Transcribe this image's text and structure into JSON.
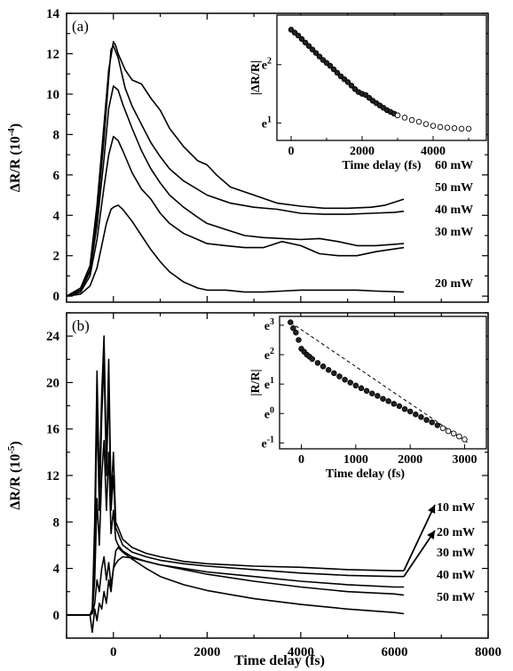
{
  "figure": {
    "x_label": "Time delay (fs)",
    "x_ticks": [
      "0",
      "2000",
      "4000",
      "6000",
      "8000"
    ]
  },
  "chart_data": [
    {
      "id": "panel-a-main",
      "type": "line",
      "panel_label": "(a)",
      "xlabel": "Time delay (fs)",
      "ylabel": "ΔR/R (10",
      "ylabel_exp": "-4",
      "ylabel_close": ")",
      "xlim": [
        -1000,
        8000
      ],
      "ylim": [
        -0.3,
        14
      ],
      "y_ticks": [
        "0",
        "2",
        "4",
        "6",
        "8",
        "10",
        "12",
        "14"
      ],
      "series": [
        {
          "name": "60 mW",
          "x": [
            -1000,
            -700,
            -500,
            -350,
            -200,
            -100,
            0,
            50,
            100,
            250,
            400,
            600,
            800,
            1000,
            1200,
            1500,
            1800,
            2000,
            2200,
            2500,
            3000,
            3500,
            4000,
            4500,
            5000,
            5500,
            5800,
            6200
          ],
          "y": [
            0,
            0.4,
            1.5,
            4.5,
            8.5,
            11.2,
            12.6,
            12.4,
            12.0,
            11.2,
            10.7,
            10.5,
            9.8,
            9.2,
            8.3,
            7.4,
            6.7,
            6.5,
            6.0,
            5.4,
            5.0,
            4.6,
            4.45,
            4.35,
            4.35,
            4.4,
            4.5,
            4.8
          ]
        },
        {
          "name": "50 mW",
          "x": [
            -1000,
            -700,
            -500,
            -350,
            -200,
            -100,
            -50,
            0,
            100,
            250,
            400,
            600,
            800,
            1000,
            1200,
            1500,
            2000,
            2500,
            3000,
            3500,
            4000,
            4500,
            5000,
            5500,
            6000,
            6200
          ],
          "y": [
            0,
            0.3,
            1.3,
            4.0,
            7.8,
            10.8,
            12.2,
            12.4,
            11.8,
            10.3,
            9.4,
            8.5,
            7.6,
            6.9,
            6.3,
            5.7,
            5.0,
            4.6,
            4.4,
            4.3,
            4.1,
            4.05,
            4.05,
            4.1,
            4.15,
            4.2
          ]
        },
        {
          "name": "40 mW",
          "x": [
            -1000,
            -700,
            -500,
            -350,
            -200,
            -100,
            0,
            100,
            200,
            400,
            600,
            800,
            1000,
            1200,
            1500,
            1800,
            2000,
            2400,
            2800,
            3200,
            3600,
            4000,
            4400,
            4800,
            5200,
            5600,
            6200
          ],
          "y": [
            0,
            0.3,
            1.2,
            3.5,
            6.8,
            9.3,
            10.4,
            10.2,
            9.5,
            8.3,
            7.2,
            6.3,
            5.6,
            5.0,
            4.4,
            3.9,
            3.6,
            3.3,
            3.0,
            2.9,
            2.85,
            2.8,
            2.85,
            2.7,
            2.5,
            2.5,
            2.6
          ]
        },
        {
          "name": "30 mW",
          "x": [
            -1000,
            -700,
            -500,
            -350,
            -200,
            -100,
            0,
            100,
            200,
            400,
            600,
            800,
            1000,
            1200,
            1500,
            1800,
            2000,
            2400,
            2800,
            3200,
            3600,
            4000,
            4400,
            4800,
            5200,
            5600,
            6200
          ],
          "y": [
            0,
            0.2,
            1.0,
            2.8,
            5.4,
            7.0,
            7.9,
            7.7,
            7.2,
            6.1,
            5.3,
            4.8,
            4.1,
            3.6,
            3.1,
            2.8,
            2.6,
            2.5,
            2.4,
            2.4,
            2.7,
            2.5,
            2.1,
            2.0,
            2.0,
            2.2,
            2.4
          ]
        },
        {
          "name": "20 mW",
          "x": [
            -1000,
            -700,
            -500,
            -350,
            -250,
            -150,
            -50,
            0,
            100,
            200,
            400,
            600,
            800,
            1000,
            1200,
            1500,
            1800,
            2000,
            2400,
            2800,
            3200,
            3600,
            4000,
            4400,
            4800,
            5200,
            5600,
            6200
          ],
          "y": [
            0,
            0.1,
            0.5,
            1.4,
            2.5,
            3.6,
            4.3,
            4.4,
            4.5,
            4.3,
            3.7,
            3.0,
            2.3,
            1.7,
            1.2,
            0.7,
            0.4,
            0.3,
            0.3,
            0.2,
            0.2,
            0.25,
            0.3,
            0.3,
            0.3,
            0.3,
            0.25,
            0.2
          ]
        }
      ],
      "annotations": [
        "60 mW",
        "50 mW",
        "40 mW",
        "30 mW",
        "20 mW"
      ]
    },
    {
      "id": "panel-a-inset",
      "type": "scatter",
      "xlabel": "Time delay (fs)",
      "ylabel": "|ΔR/R|",
      "xlim": [
        -400,
        5500
      ],
      "x_ticks": [
        "0",
        "2000",
        "4000"
      ],
      "y_scale": "log",
      "y_ticks": [
        "e2",
        "e1"
      ],
      "points_x": [
        0,
        100,
        200,
        300,
        400,
        500,
        600,
        700,
        800,
        900,
        1000,
        1100,
        1200,
        1300,
        1400,
        1500,
        1600,
        1700,
        1800,
        1900,
        2000,
        2100,
        2200,
        2300,
        2400,
        2500,
        2600,
        2700,
        2800,
        2900,
        3000,
        3200,
        3400,
        3600,
        3800,
        4000,
        4200,
        4400,
        4600,
        4800,
        5000
      ],
      "points_lnY": [
        2.6,
        2.55,
        2.5,
        2.44,
        2.38,
        2.32,
        2.26,
        2.2,
        2.14,
        2.08,
        2.03,
        1.98,
        1.92,
        1.86,
        1.8,
        1.75,
        1.7,
        1.64,
        1.58,
        1.53,
        1.5,
        1.48,
        1.43,
        1.38,
        1.34,
        1.3,
        1.26,
        1.22,
        1.19,
        1.16,
        1.13,
        1.09,
        1.05,
        1.02,
        0.98,
        0.95,
        0.93,
        0.92,
        0.91,
        0.9,
        0.9
      ]
    },
    {
      "id": "panel-b-main",
      "type": "line",
      "panel_label": "(b)",
      "xlabel": "Time delay (fs)",
      "ylabel": "ΔR/R (10",
      "ylabel_exp": "-5",
      "ylabel_close": ")",
      "xlim": [
        -1000,
        8000
      ],
      "ylim": [
        -2,
        26
      ],
      "y_ticks": [
        "0",
        "4",
        "8",
        "12",
        "16",
        "20",
        "24"
      ],
      "x_ticks": [
        "0",
        "2000",
        "4000",
        "6000",
        "8000"
      ],
      "series": [
        {
          "name": "10 mW",
          "x": [
            -1000,
            -500,
            -450,
            -400,
            -350,
            -300,
            -250,
            -200,
            -150,
            -100,
            -50,
            0,
            50,
            100,
            200,
            400,
            700,
            1000,
            1500,
            2000,
            3000,
            4000,
            5000,
            6000,
            6200
          ],
          "y": [
            0,
            0,
            0.5,
            8,
            21,
            11,
            19,
            24,
            13,
            22,
            10,
            14,
            8,
            7.5,
            6.5,
            5.8,
            5.3,
            5.0,
            4.6,
            4.4,
            4.2,
            4.1,
            3.9,
            3.8,
            3.8
          ]
        },
        {
          "name": "20 mW",
          "x": [
            -1000,
            -500,
            -450,
            -400,
            -350,
            -300,
            -250,
            -200,
            -150,
            -100,
            -50,
            0,
            50,
            100,
            200,
            400,
            700,
            1000,
            1500,
            2000,
            3000,
            4000,
            5000,
            6000,
            6200
          ],
          "y": [
            0,
            0,
            0.3,
            5,
            18,
            9,
            17,
            22,
            12,
            20,
            9,
            12,
            7.5,
            7,
            6.0,
            5.4,
            5.0,
            4.7,
            4.4,
            4.2,
            3.9,
            3.6,
            3.4,
            3.3,
            3.3
          ]
        },
        {
          "name": "30 mW",
          "x": [
            -1000,
            -500,
            -450,
            -400,
            -350,
            -300,
            -250,
            -200,
            -150,
            -100,
            -50,
            0,
            50,
            100,
            200,
            400,
            700,
            1000,
            1500,
            2000,
            3000,
            4000,
            5000,
            6000,
            6200
          ],
          "y": [
            0,
            0,
            0.2,
            3,
            10,
            6,
            12,
            15,
            9,
            14,
            7,
            9,
            6.5,
            6,
            5.5,
            5.0,
            4.6,
            4.3,
            4.0,
            3.7,
            3.3,
            2.9,
            2.6,
            2.4,
            2.4
          ]
        },
        {
          "name": "40 mW",
          "x": [
            -1000,
            -500,
            -450,
            -400,
            -350,
            -300,
            -250,
            -200,
            -150,
            -100,
            -50,
            0,
            50,
            100,
            200,
            400,
            700,
            1000,
            1500,
            2000,
            3000,
            4000,
            5000,
            6000,
            6200
          ],
          "y": [
            0,
            0,
            0.1,
            1,
            3,
            2,
            4,
            5,
            3,
            4.5,
            2.5,
            4,
            4.4,
            4.7,
            5.0,
            4.9,
            4.6,
            4.3,
            3.9,
            3.5,
            2.9,
            2.4,
            2.0,
            1.8,
            1.7
          ]
        },
        {
          "name": "50 mW",
          "x": [
            -1000,
            -500,
            -450,
            -400,
            -350,
            -300,
            -250,
            -200,
            -150,
            -100,
            -50,
            0,
            50,
            100,
            200,
            400,
            700,
            1000,
            1500,
            2000,
            3000,
            4000,
            5000,
            6000,
            6200
          ],
          "y": [
            0,
            0,
            -1.5,
            0.5,
            -0.5,
            1,
            0.5,
            2,
            1,
            3,
            2,
            4,
            5.5,
            5.8,
            5.4,
            4.8,
            4.0,
            3.3,
            2.6,
            2.1,
            1.4,
            0.9,
            0.5,
            0.2,
            0.1
          ]
        }
      ],
      "annotations": [
        "10 mW",
        "20 mW",
        "30 mW",
        "40 mW",
        "50 mW"
      ]
    },
    {
      "id": "panel-b-inset",
      "type": "scatter",
      "xlabel": "Time delay (fs)",
      "ylabel": "|R/R|",
      "xlim": [
        -400,
        3400
      ],
      "x_ticks": [
        "0",
        "1000",
        "2000",
        "3000"
      ],
      "y_scale": "log",
      "y_ticks": [
        "e3",
        "e2",
        "e1",
        "e0",
        "e-1"
      ],
      "points_x": [
        -200,
        -150,
        -100,
        -50,
        0,
        50,
        100,
        150,
        200,
        300,
        400,
        500,
        600,
        700,
        800,
        900,
        1000,
        1100,
        1200,
        1300,
        1400,
        1500,
        1600,
        1700,
        1800,
        1900,
        2000,
        2100,
        2200,
        2300,
        2400,
        2500,
        2600,
        2700,
        2800,
        2900,
        3000
      ],
      "points_lnY": [
        3.1,
        2.9,
        2.75,
        2.5,
        2.2,
        2.1,
        2.0,
        1.93,
        1.85,
        1.72,
        1.6,
        1.48,
        1.37,
        1.26,
        1.15,
        1.05,
        0.95,
        0.86,
        0.77,
        0.68,
        0.6,
        0.5,
        0.42,
        0.33,
        0.25,
        0.15,
        0.07,
        -0.03,
        -0.12,
        -0.22,
        -0.3,
        -0.4,
        -0.5,
        -0.6,
        -0.68,
        -0.78,
        -0.88
      ]
    }
  ]
}
